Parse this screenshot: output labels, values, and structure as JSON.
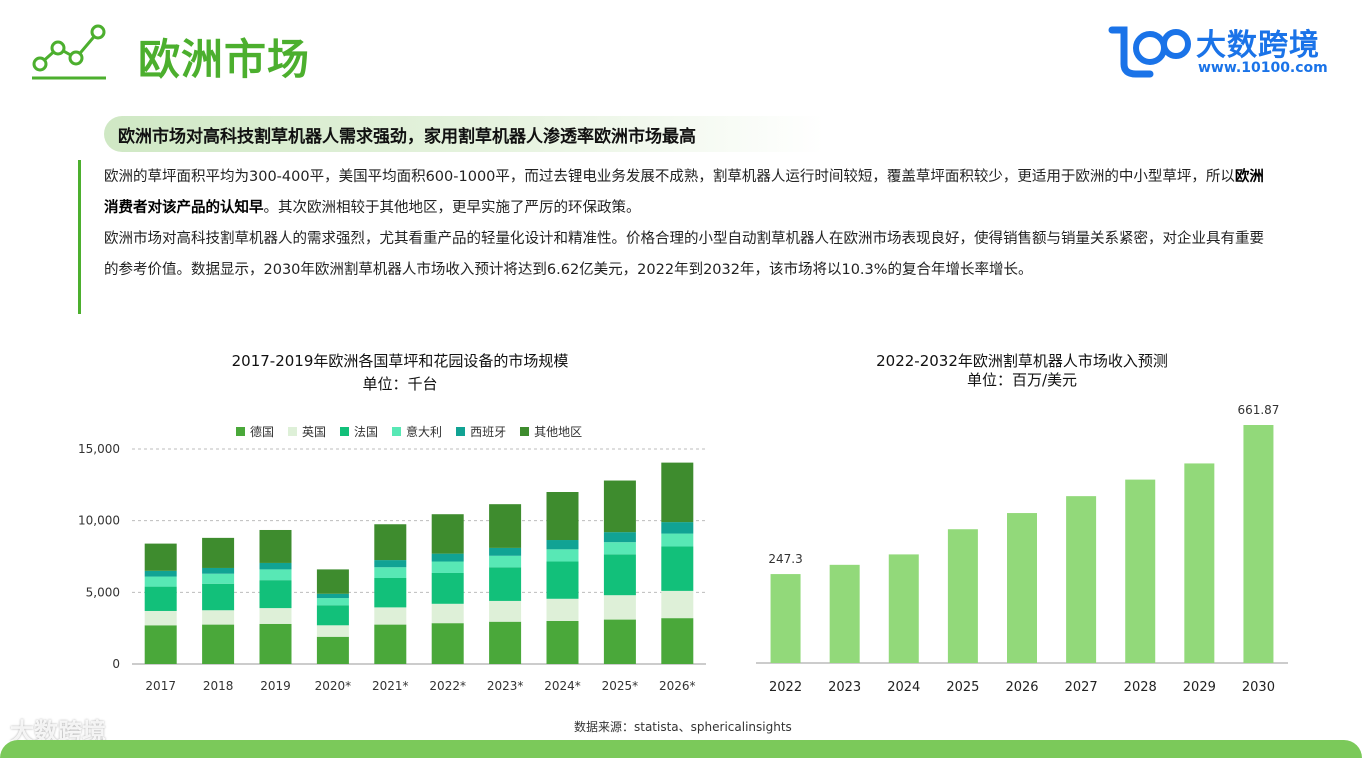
{
  "page": {
    "title": "欧洲市场",
    "logo_name": "大数跨境",
    "logo_url": "www.10100.com",
    "subheading": "欧洲市场对高科技割草机器人需求强劲，家用割草机器人渗透率欧洲市场最高",
    "para1_part1": "欧洲的草坪面积平均为300-400平，美国平均面积600-1000平，而过去锂电业务发展不成熟，割草机器人运行时间较短，覆盖草坪面积较少，更适用于欧洲的中小型草坪，所以",
    "para1_bold": "欧洲消费者对该产品的认知早",
    "para1_part2": "。其次欧洲相较于其他地区，更早实施了严厉的环保政策。",
    "para2": "欧洲市场对高科技割草机器人的需求强烈，尤其看重产品的轻量化设计和精准性。价格合理的小型自动割草机器人在欧洲市场表现良好，使得销售额与销量关系紧密，对企业具有重要的参考价值。数据显示，2030年欧洲割草机器人市场收入预计将达到6.62亿美元，2022年到2032年，该市场将以10.3%的复合年增长率增长。",
    "source": "数据来源：statista、sphericalinsights",
    "watermark": "大数跨境"
  },
  "chart_data": [
    {
      "type": "bar",
      "stacked": true,
      "title": "2017-2019年欧洲各国草坪和花园设备的市场规模",
      "unit": "单位：千台",
      "categories": [
        "2017",
        "2018",
        "2019",
        "2020*",
        "2021*",
        "2022*",
        "2023*",
        "2024*",
        "2025*",
        "2026*"
      ],
      "ylim": [
        0,
        15000
      ],
      "yticks": [
        0,
        5000,
        10000,
        15000
      ],
      "ytick_labels": [
        "0",
        "5,000",
        "10,000",
        "15,000"
      ],
      "grid": true,
      "legend": "top",
      "series": [
        {
          "name": "德国",
          "color": "#4aa83a",
          "values": [
            2700,
            2750,
            2800,
            1900,
            2750,
            2850,
            2950,
            3000,
            3100,
            3200
          ]
        },
        {
          "name": "英国",
          "color": "#def0d8",
          "values": [
            1000,
            1000,
            1100,
            800,
            1200,
            1350,
            1450,
            1550,
            1700,
            1900
          ]
        },
        {
          "name": "法国",
          "color": "#12c07a",
          "values": [
            1700,
            1850,
            1950,
            1400,
            2050,
            2150,
            2350,
            2600,
            2850,
            3100
          ]
        },
        {
          "name": "意大利",
          "color": "#58e8b5",
          "values": [
            700,
            700,
            750,
            500,
            750,
            800,
            800,
            850,
            850,
            900
          ]
        },
        {
          "name": "西班牙",
          "color": "#11a394",
          "values": [
            400,
            400,
            450,
            300,
            500,
            550,
            550,
            650,
            700,
            800
          ]
        },
        {
          "name": "其他地区",
          "color": "#3e8c2e",
          "values": [
            1900,
            2100,
            2300,
            1700,
            2500,
            2750,
            3050,
            3350,
            3600,
            4150
          ]
        }
      ]
    },
    {
      "type": "bar",
      "title": "2022-2032年欧洲割草机器人市场收入预测",
      "unit": "单位：百万/美元",
      "categories": [
        "2022",
        "2023",
        "2024",
        "2025",
        "2026",
        "2027",
        "2028",
        "2029",
        "2030"
      ],
      "values": [
        247.3,
        273,
        302,
        372,
        417,
        464,
        510,
        555,
        661.87
      ],
      "value_labels": {
        "2022": "247.3",
        "2030": "661.87"
      },
      "ylim": [
        0,
        700
      ],
      "color": "#92d97a",
      "grid": false
    }
  ]
}
